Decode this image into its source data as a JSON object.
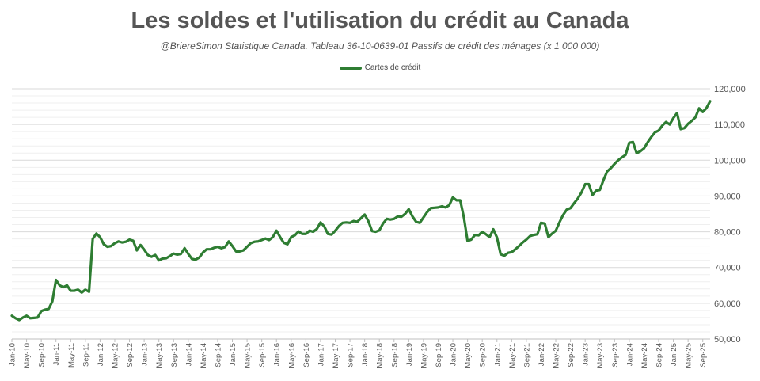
{
  "title": "Les soldes et l'utilisation du crédit au Canada",
  "subtitle": "@BriereSimon Statistique Canada. Tableau 36-10-0639-01 Passifs de crédit des ménages  (x 1 000 000)",
  "colors": {
    "line": "#2e7d32",
    "grid": "#e2e2e2",
    "axis_text": "#555555"
  },
  "chart_data": {
    "type": "line",
    "legend_position": "top-center",
    "grid": true,
    "ylim": [
      50000,
      120000
    ],
    "y_ticks": [
      50000,
      60000,
      70000,
      80000,
      90000,
      100000,
      110000,
      120000
    ],
    "y_tick_labels": [
      "50,000",
      "60,000",
      "70,000",
      "80,000",
      "90,000",
      "100,000",
      "110,000",
      "120,000"
    ],
    "x_start": "Jan-10",
    "x_end": "Sep-25",
    "x_tick_labels": [
      "Jan-10",
      "May-10",
      "Sep-10",
      "Jan-11",
      "May-11",
      "Sep-11",
      "Jan-12",
      "May-12",
      "Sep-12",
      "Jan-13",
      "May-13",
      "Sep-13",
      "Jan-14",
      "May-14",
      "Sep-14",
      "Jan-15",
      "May-15",
      "Sep-15",
      "Jan-16",
      "May-16",
      "Sep-16",
      "Jan-17",
      "May-17",
      "Sep-17",
      "Jan-18",
      "May-18",
      "Sep-18",
      "Jan-19",
      "May-19",
      "Sep-19",
      "Jan-20",
      "May-20",
      "Sep-20",
      "Jan-21",
      "May-21",
      "Sep-21",
      "Jan-22",
      "May-22",
      "Sep-22",
      "Jan-23",
      "May-23",
      "Sep-23",
      "Jan-24",
      "May-24",
      "Sep-24",
      "Jan-25",
      "May-25",
      "Sep-25"
    ],
    "series": [
      {
        "name": "Cartes de crédit",
        "values": [
          56500,
          55800,
          55300,
          56000,
          56500,
          55800,
          55900,
          56000,
          57800,
          58200,
          58400,
          60500,
          66500,
          65000,
          64500,
          65000,
          63500,
          63500,
          63800,
          63000,
          63800,
          63200,
          78000,
          79500,
          78500,
          76500,
          75800,
          76000,
          76800,
          77300,
          77000,
          77200,
          77800,
          77500,
          74800,
          76300,
          75000,
          73500,
          73000,
          73500,
          72000,
          72500,
          72600,
          73200,
          73900,
          73600,
          73800,
          75400,
          73800,
          72400,
          72200,
          72800,
          74200,
          75100,
          75100,
          75500,
          75800,
          75400,
          75700,
          77300,
          76000,
          74500,
          74500,
          74800,
          75800,
          76800,
          77200,
          77300,
          77700,
          78100,
          77700,
          78500,
          80300,
          78500,
          76900,
          76500,
          78500,
          79000,
          80100,
          79400,
          79400,
          80300,
          80000,
          80800,
          82600,
          81500,
          79400,
          79200,
          80300,
          81600,
          82500,
          82600,
          82500,
          83000,
          82800,
          83800,
          84800,
          83000,
          80200,
          80000,
          80400,
          82300,
          83600,
          83400,
          83600,
          84300,
          84200,
          85000,
          86300,
          84300,
          82800,
          82500,
          84000,
          85500,
          86600,
          86700,
          86800,
          87100,
          86800,
          87400,
          89600,
          88800,
          88800,
          84000,
          77400,
          77800,
          79100,
          79000,
          80000,
          79300,
          78500,
          80700,
          78400,
          73700,
          73300,
          74100,
          74300,
          75100,
          76000,
          77000,
          77800,
          78800,
          79100,
          79300,
          82500,
          82300,
          78500,
          79500,
          80300,
          82600,
          84700,
          86200,
          86600,
          88000,
          89300,
          91000,
          93300,
          93300,
          90300,
          91500,
          91700,
          94500,
          96900,
          97800,
          99000,
          100000,
          100800,
          101500,
          104900,
          105100,
          102000,
          102500,
          103300,
          105000,
          106500,
          107800,
          108300,
          109700,
          110700,
          110000,
          111800,
          113200,
          108700,
          109000,
          110200,
          111000,
          112000,
          114500,
          113500,
          114600,
          116500
        ]
      }
    ]
  }
}
